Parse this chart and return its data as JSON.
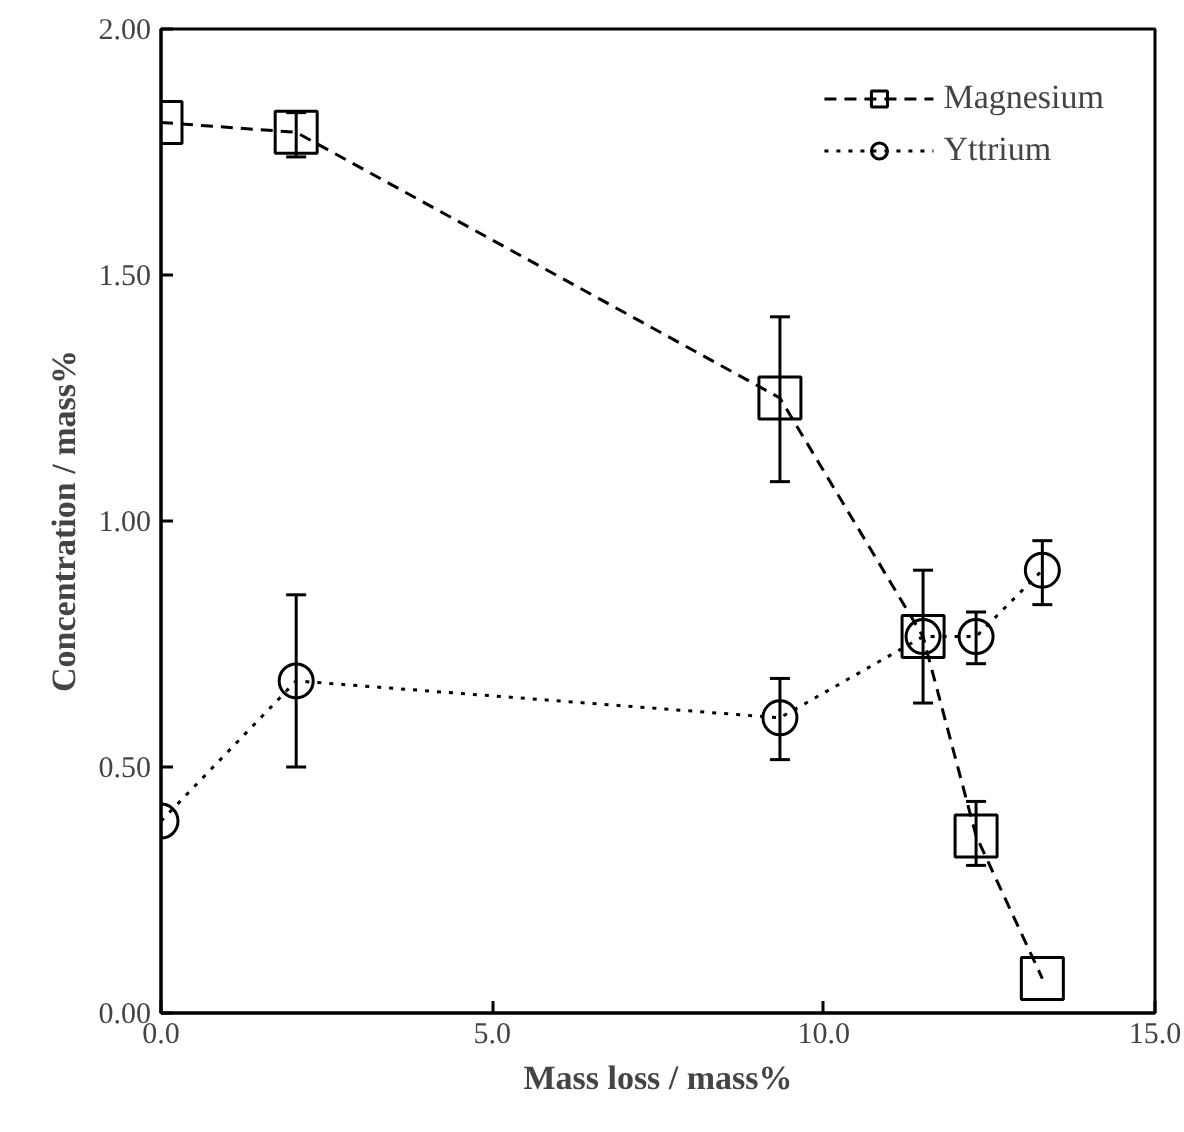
{
  "chart_data": {
    "type": "line",
    "xlabel": "Mass loss / mass%",
    "ylabel": "Concentration / mass%",
    "xlim": [
      0,
      15
    ],
    "ylim": [
      0,
      2
    ],
    "xticks": [
      {
        "value": 0,
        "label": "0.0"
      },
      {
        "value": 5,
        "label": "5.0"
      },
      {
        "value": 10,
        "label": "10.0"
      },
      {
        "value": 15,
        "label": "15.0"
      }
    ],
    "yticks": [
      {
        "value": 0,
        "label": "0.00"
      },
      {
        "value": 0.5,
        "label": "0.50"
      },
      {
        "value": 1,
        "label": "1.00"
      },
      {
        "value": 1.5,
        "label": "1.50"
      },
      {
        "value": 2,
        "label": "2.00"
      }
    ],
    "grid": false,
    "legend": "top right",
    "series": [
      {
        "name": "Magnesium",
        "color": "#000000",
        "marker": "square",
        "line_style": "dashed",
        "x": [
          0,
          2.04,
          9.34,
          11.5,
          12.3,
          13.3
        ],
        "values": [
          1.81,
          1.79,
          1.25,
          0.765,
          0.36,
          0.07
        ],
        "errors": [
          null,
          [
            1.74,
            1.83
          ],
          [
            1.08,
            1.415
          ],
          [
            0.63,
            0.9
          ],
          [
            0.3,
            0.43
          ],
          null
        ]
      },
      {
        "name": "Yttrium",
        "color": "#000000",
        "marker": "circle",
        "line_style": "dotted",
        "x": [
          0,
          2.04,
          9.34,
          11.5,
          12.3,
          13.3
        ],
        "values": [
          0.39,
          0.675,
          0.6,
          0.765,
          0.765,
          0.9
        ],
        "errors": [
          null,
          [
            0.5,
            0.85
          ],
          [
            0.515,
            0.68
          ],
          null,
          [
            0.71,
            0.815
          ],
          [
            0.83,
            0.96
          ]
        ]
      }
    ]
  }
}
